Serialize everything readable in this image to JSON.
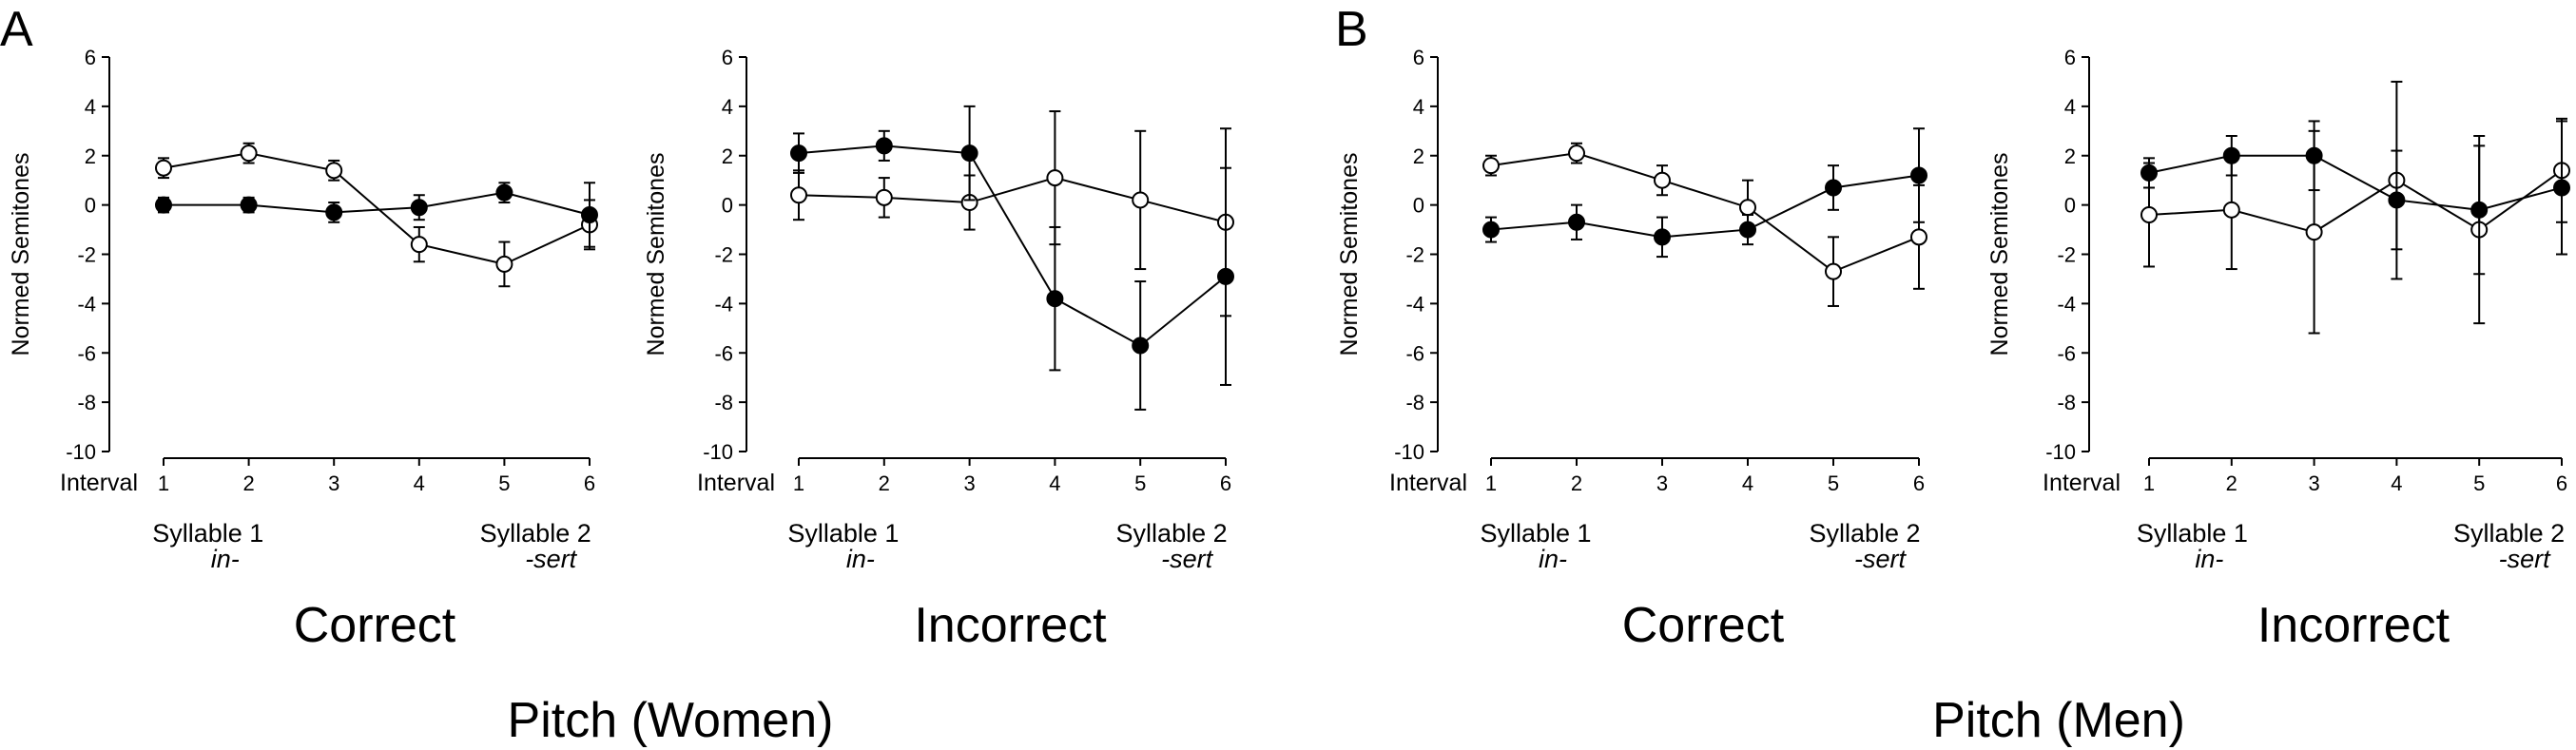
{
  "figure": {
    "groups": [
      {
        "letter": "A",
        "title": "Pitch (Women)"
      },
      {
        "letter": "B",
        "title": "Pitch (Men)"
      }
    ]
  },
  "chart_data": [
    {
      "type": "line",
      "group": "A",
      "condition_label": "Correct",
      "ylabel": "Normed Semitones",
      "xlabel": "Interval",
      "x": [
        1,
        2,
        3,
        4,
        5,
        6
      ],
      "ylim": [
        -10,
        6
      ],
      "yticks": [
        6,
        4,
        2,
        0,
        -2,
        -4,
        -6,
        -8,
        -10
      ],
      "syllables": [
        {
          "label": "Syllable 1",
          "morph": "in-"
        },
        {
          "label": "Syllable 2",
          "morph": "-sert"
        }
      ],
      "series": [
        {
          "marker": "open",
          "values": [
            1.5,
            2.1,
            1.4,
            -1.6,
            -2.4,
            -0.8
          ],
          "err": [
            0.4,
            0.4,
            0.4,
            0.7,
            0.9,
            1.0
          ]
        },
        {
          "marker": "filled",
          "values": [
            0.0,
            0.0,
            -0.3,
            -0.1,
            0.5,
            -0.4
          ],
          "err": [
            0.3,
            0.3,
            0.4,
            0.5,
            0.4,
            1.3
          ]
        }
      ]
    },
    {
      "type": "line",
      "group": "A",
      "condition_label": "Incorrect",
      "ylabel": "Normed Semitones",
      "xlabel": "Interval",
      "x": [
        1,
        2,
        3,
        4,
        5,
        6
      ],
      "ylim": [
        -10,
        6
      ],
      "yticks": [
        6,
        4,
        2,
        0,
        -2,
        -4,
        -6,
        -8,
        -10
      ],
      "syllables": [
        {
          "label": "Syllable 1",
          "morph": "in-"
        },
        {
          "label": "Syllable 2",
          "morph": "-sert"
        }
      ],
      "series": [
        {
          "marker": "open",
          "values": [
            0.4,
            0.3,
            0.1,
            1.1,
            0.2,
            -0.7
          ],
          "err": [
            1.0,
            0.8,
            1.1,
            2.7,
            2.8,
            3.8
          ]
        },
        {
          "marker": "filled",
          "values": [
            2.1,
            2.4,
            2.1,
            -3.8,
            -5.7,
            -2.9
          ],
          "err": [
            0.8,
            0.6,
            1.9,
            2.9,
            2.6,
            4.4
          ]
        }
      ]
    },
    {
      "type": "line",
      "group": "B",
      "condition_label": "Correct",
      "ylabel": "Normed Semitones",
      "xlabel": "Interval",
      "x": [
        1,
        2,
        3,
        4,
        5,
        6
      ],
      "ylim": [
        -10,
        6
      ],
      "yticks": [
        6,
        4,
        2,
        0,
        -2,
        -4,
        -6,
        -8,
        -10
      ],
      "syllables": [
        {
          "label": "Syllable 1",
          "morph": "in-"
        },
        {
          "label": "Syllable 2",
          "morph": "-sert"
        }
      ],
      "series": [
        {
          "marker": "open",
          "values": [
            1.6,
            2.1,
            1.0,
            -0.1,
            -2.7,
            -1.3
          ],
          "err": [
            0.4,
            0.4,
            0.6,
            1.1,
            1.4,
            2.1
          ]
        },
        {
          "marker": "filled",
          "values": [
            -1.0,
            -0.7,
            -1.3,
            -1.0,
            0.7,
            1.2
          ],
          "err": [
            0.5,
            0.7,
            0.8,
            0.6,
            0.9,
            1.9
          ]
        }
      ]
    },
    {
      "type": "line",
      "group": "B",
      "condition_label": "Incorrect",
      "ylabel": "Normed Semitones",
      "xlabel": "Interval",
      "x": [
        1,
        2,
        3,
        4,
        5,
        6
      ],
      "ylim": [
        -10,
        6
      ],
      "yticks": [
        6,
        4,
        2,
        0,
        -2,
        -4,
        -6,
        -8,
        -10
      ],
      "syllables": [
        {
          "label": "Syllable 1",
          "morph": "in-"
        },
        {
          "label": "Syllable 2",
          "morph": "-sert"
        }
      ],
      "series": [
        {
          "marker": "open",
          "values": [
            -0.4,
            -0.2,
            -1.1,
            1.0,
            -1.0,
            1.4
          ],
          "err": [
            2.1,
            2.4,
            4.1,
            4.0,
            3.8,
            2.1
          ]
        },
        {
          "marker": "filled",
          "values": [
            1.3,
            2.0,
            2.0,
            0.2,
            -0.2,
            0.7
          ],
          "err": [
            0.6,
            0.8,
            1.4,
            2.0,
            2.6,
            2.7
          ]
        }
      ]
    }
  ]
}
